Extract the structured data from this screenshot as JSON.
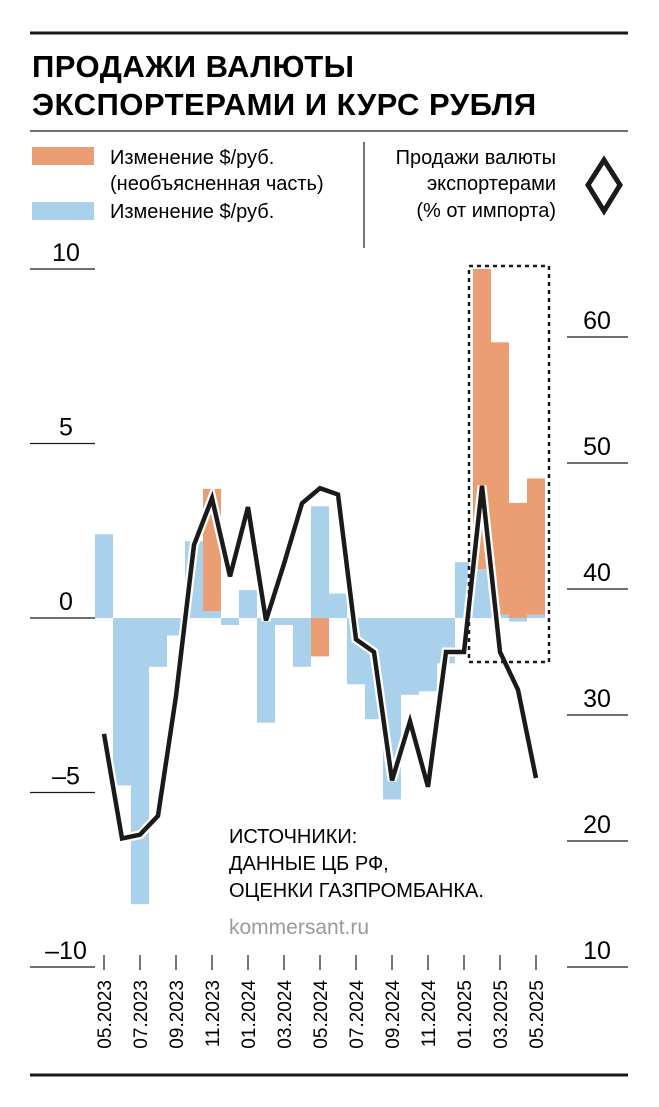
{
  "title_line1": "ПРОДАЖИ ВАЛЮТЫ",
  "title_line2": "ЭКСПОРТЕРАМИ И КУРС РУБЛЯ",
  "legend": {
    "unexplained_line1": "Изменение $/руб.",
    "unexplained_line2": "(необъясненная часть)",
    "change": "Изменение $/руб.",
    "sales_line1": "Продажи валюты",
    "sales_line2": "экспортерами",
    "sales_line3": "(% от импорта)"
  },
  "source_line1": "ИСТОЧНИКИ:",
  "source_line2": "ДАННЫЕ ЦБ РФ,",
  "source_line3": "ОЦЕНКИ ГАЗПРОМБАНКА.",
  "site": "kommersant.ru",
  "colors": {
    "change": "#a9d1ec",
    "unexplained": "#eb9e74",
    "line": "#1a1a1a",
    "rule": "#1a1a1a"
  },
  "chart_data": {
    "type": "bar",
    "left_axis": {
      "ticks": [
        10,
        5,
        0,
        -5,
        -10
      ],
      "tick_labels": [
        "10",
        "5",
        "0",
        "–5",
        "–10"
      ],
      "ylim": [
        -10,
        10
      ]
    },
    "right_axis": {
      "ticks": [
        60,
        50,
        40,
        30,
        20,
        10
      ],
      "tick_labels": [
        "60",
        "50",
        "40",
        "30",
        "20",
        "10"
      ],
      "ylim": [
        10,
        60
      ]
    },
    "x_labels": [
      "05.2023",
      "07.2023",
      "09.2023",
      "11.2023",
      "01.2024",
      "03.2024",
      "05.2024",
      "07.2024",
      "09.2024",
      "11.2024",
      "01.2025",
      "03.2025",
      "05.2025"
    ],
    "categories": [
      "05.2023",
      "06.2023",
      "07.2023",
      "08.2023",
      "09.2023",
      "10.2023",
      "11.2023",
      "12.2023",
      "01.2024",
      "02.2024",
      "03.2024",
      "04.2024",
      "05.2024",
      "06.2024",
      "07.2024",
      "08.2024",
      "09.2024",
      "10.2024",
      "11.2024",
      "12.2024",
      "01.2025",
      "02.2025",
      "03.2025",
      "04.2025",
      "05.2025"
    ],
    "series": [
      {
        "name": "Изменение $/руб.",
        "type": "bar",
        "axis": "left",
        "values": [
          2.4,
          -4.8,
          -8.2,
          -1.4,
          -0.5,
          2.2,
          0.2,
          -0.2,
          0.8,
          -3.0,
          -0.2,
          -1.4,
          3.2,
          0.7,
          -1.9,
          -2.9,
          -5.2,
          -2.2,
          -2.1,
          -1.3,
          1.6,
          1.4,
          0.1,
          -0.1,
          0.1
        ]
      },
      {
        "name": "Изменение $/руб. (необъясненная часть)",
        "type": "bar",
        "axis": "left",
        "values": [
          0,
          0,
          0,
          0,
          0,
          0,
          3.5,
          0,
          0,
          0,
          0,
          0,
          -1.1,
          0,
          0,
          0,
          0,
          0,
          0,
          0,
          0,
          8.6,
          7.8,
          3.3,
          3.9
        ]
      },
      {
        "name": "Продажи валюты экспортерами (% от импорта)",
        "type": "line",
        "axis": "right",
        "values": [
          28.5,
          20.2,
          20.5,
          22.0,
          31.5,
          43.5,
          47.2,
          41.0,
          46.5,
          37.5,
          42.0,
          46.8,
          48.0,
          47.5,
          36.0,
          35.0,
          24.8,
          29.5,
          24.3,
          35.0,
          35.0,
          48.2,
          35.0,
          32.0,
          25.0
        ]
      }
    ],
    "highlight": {
      "from": "02.2025",
      "to": "05.2025"
    }
  }
}
